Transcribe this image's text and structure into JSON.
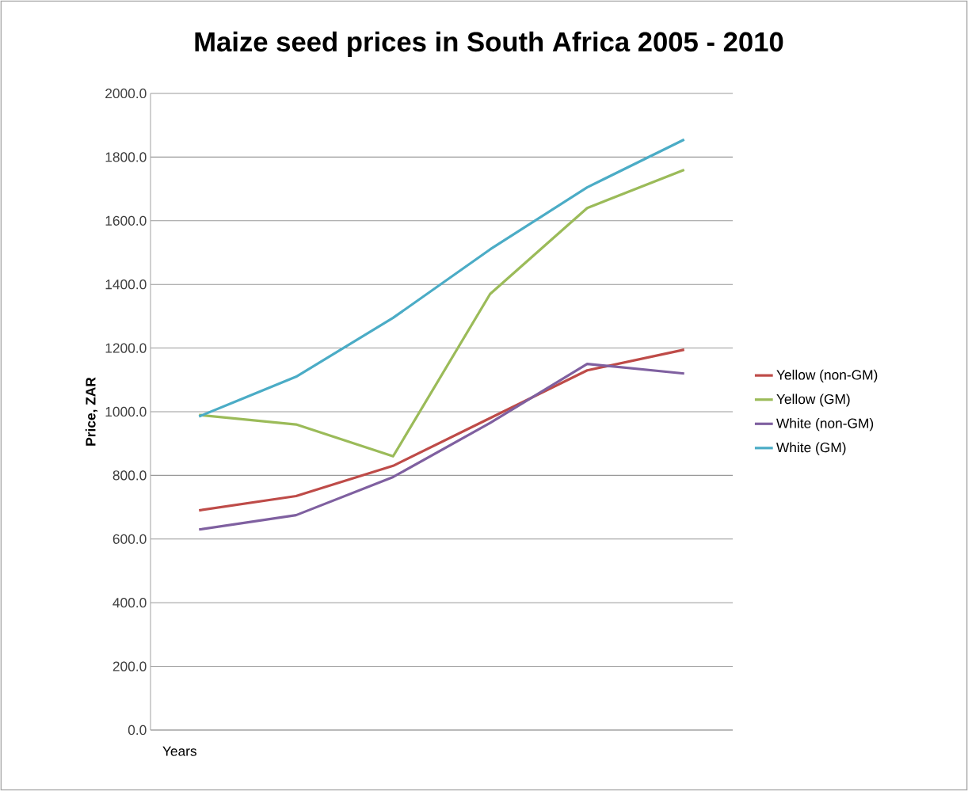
{
  "chart_data": {
    "type": "line",
    "title": "Maize seed prices in South Africa 2005 - 2010",
    "xlabel": "Years",
    "ylabel": "Price, ZAR",
    "categories": [
      null,
      null,
      null,
      null,
      null,
      null
    ],
    "series": [
      {
        "name": "Yellow (non-GM)",
        "color": "#be4b48",
        "values": [
          690,
          735,
          830,
          980,
          1130,
          1195
        ]
      },
      {
        "name": "Yellow (GM)",
        "color": "#9bbb59",
        "values": [
          990,
          960,
          860,
          1370,
          1640,
          1760
        ]
      },
      {
        "name": "White (non-GM)",
        "color": "#7f60a0",
        "values": [
          630,
          675,
          795,
          965,
          1150,
          1120
        ]
      },
      {
        "name": "White (GM)",
        "color": "#4bacc6",
        "values": [
          985,
          1110,
          1295,
          1510,
          1705,
          1855
        ]
      }
    ],
    "ylim": [
      0,
      2000
    ],
    "yticks": [
      {
        "value": 0,
        "label": "0.0"
      },
      {
        "value": 200,
        "label": "200.0"
      },
      {
        "value": 400,
        "label": "400.0"
      },
      {
        "value": 600,
        "label": "600.0"
      },
      {
        "value": 800,
        "label": "800.0"
      },
      {
        "value": 1000,
        "label": "1000.0"
      },
      {
        "value": 1200,
        "label": "1200.0"
      },
      {
        "value": 1400,
        "label": "1400.0"
      },
      {
        "value": 1600,
        "label": "1600.0"
      },
      {
        "value": 1800,
        "label": "1800.0"
      },
      {
        "value": 2000,
        "label": "2000.0"
      }
    ],
    "grid": "y",
    "legend": "right",
    "marker": "none",
    "tick_labels": "y"
  }
}
